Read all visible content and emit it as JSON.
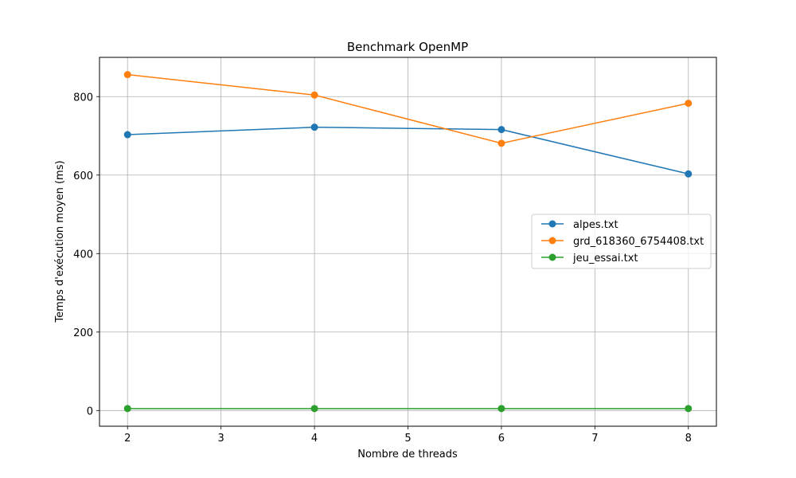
{
  "chart_data": {
    "type": "line",
    "title": "Benchmark OpenMP",
    "xlabel": "Nombre de threads",
    "ylabel": "Temps d'exécution moyen (ms)",
    "xlim": [
      1.7,
      8.3
    ],
    "ylim": [
      -40,
      900
    ],
    "xticks": [
      2,
      3,
      4,
      5,
      6,
      7,
      8
    ],
    "yticks": [
      0,
      200,
      400,
      600,
      800
    ],
    "grid": true,
    "legend_position": "center-right",
    "x": [
      2,
      4,
      6,
      8
    ],
    "series": [
      {
        "name": "alpes.txt",
        "color": "#1f77b4",
        "values": [
          703,
          722,
          716,
          603
        ]
      },
      {
        "name": "grd_618360_6754408.txt",
        "color": "#ff7f0e",
        "values": [
          856,
          804,
          681,
          783
        ]
      },
      {
        "name": "jeu_essai.txt",
        "color": "#2ca02c",
        "values": [
          5,
          5,
          5,
          5
        ]
      }
    ]
  }
}
